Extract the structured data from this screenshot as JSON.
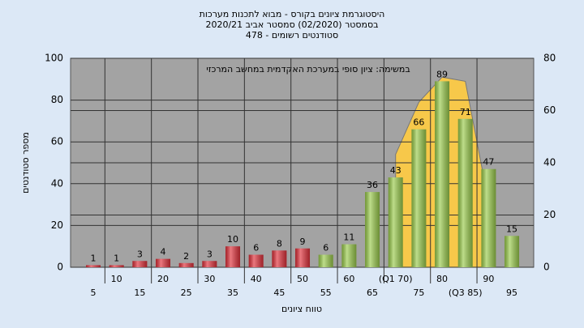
{
  "chart_data": {
    "type": "bar",
    "title": "היסטוגרמת ציונים בקורס - מבוא לתכנות מערכות",
    "subtitle": "בסמסטר  (02/2020)  סמסטר אביב 2020/21",
    "subtitle2": "סטודנטים רשומים - 478",
    "annotation": "במשימה: ציון סופי במערכת האקדמית במחשב המרכזי",
    "y_label": "מספר סטודנטים",
    "x_label": "טווח ציונים",
    "categories": [
      "5",
      "10",
      "15",
      "20",
      "25",
      "30",
      "35",
      "40",
      "45",
      "50",
      "55",
      "60",
      "65",
      "(Q1 70)",
      "75",
      "80",
      "(Q3 85)",
      "90",
      "95"
    ],
    "values": [
      1,
      1,
      3,
      4,
      2,
      3,
      10,
      6,
      8,
      9,
      6,
      11,
      36,
      43,
      66,
      89,
      71,
      47,
      15
    ],
    "colors": [
      "#e0303a",
      "#e0303a",
      "#e0303a",
      "#e0303a",
      "#e0303a",
      "#e0303a",
      "#e0303a",
      "#e0303a",
      "#e0303a",
      "#e0303a",
      "#9acb4c",
      "#9acb4c",
      "#9acb4c",
      "#9acb4c",
      "#9acb4c",
      "#9acb4c",
      "#9acb4c",
      "#9acb4c",
      "#9acb4c"
    ],
    "area": {
      "color": "#f7c84a",
      "values": [
        null,
        null,
        null,
        null,
        null,
        null,
        null,
        null,
        null,
        null,
        null,
        null,
        null,
        54,
        79,
        91,
        89,
        31,
        null
      ]
    },
    "ylim": [
      0,
      100
    ],
    "yticks": [
      0,
      20,
      40,
      60,
      80,
      100
    ],
    "y2lim": [
      0,
      80
    ],
    "y2ticks": [
      0,
      20,
      40,
      60,
      80
    ],
    "grid": true
  }
}
